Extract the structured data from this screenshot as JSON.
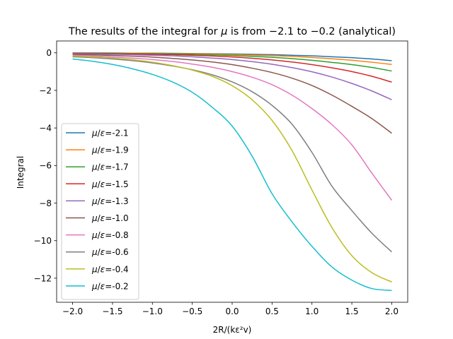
{
  "chart_data": {
    "type": "line",
    "title": "The results of the integral for μ is from −2.1 to −0.2 (analytical)",
    "xlabel": "2R/(kε²v)",
    "ylabel": "Integral",
    "xlim": [
      -2.2,
      2.2
    ],
    "ylim": [
      -13.28,
      0.63
    ],
    "xticks": [
      -2.0,
      -1.5,
      -1.0,
      -0.5,
      0.0,
      0.5,
      1.0,
      1.5,
      2.0
    ],
    "xtick_labels": [
      "−2.0",
      "−1.5",
      "−1.0",
      "−0.5",
      "0.0",
      "0.5",
      "1.0",
      "1.5",
      "2.0"
    ],
    "yticks": [
      0,
      -2,
      -4,
      -6,
      -8,
      -10,
      -12
    ],
    "ytick_labels": [
      "0",
      "−2",
      "−4",
      "−6",
      "−8",
      "−10",
      "−12"
    ],
    "grid": false,
    "legend_position": "lower-left",
    "x": [
      -2.0,
      -1.75,
      -1.5,
      -1.25,
      -1.0,
      -0.75,
      -0.5,
      -0.25,
      0.0,
      0.25,
      0.5,
      0.75,
      1.0,
      1.25,
      1.5,
      1.75,
      2.0
    ],
    "series": [
      {
        "name": "μ/ε=-2.1",
        "color": "#1f77b4",
        "values": [
          -0.01,
          -0.01,
          -0.01,
          -0.02,
          -0.02,
          -0.03,
          -0.04,
          -0.05,
          -0.06,
          -0.08,
          -0.1,
          -0.13,
          -0.16,
          -0.21,
          -0.26,
          -0.33,
          -0.42
        ]
      },
      {
        "name": "μ/ε=-1.9",
        "color": "#ff7f0e",
        "values": [
          -0.01,
          -0.01,
          -0.02,
          -0.02,
          -0.03,
          -0.04,
          -0.05,
          -0.07,
          -0.09,
          -0.12,
          -0.15,
          -0.19,
          -0.25,
          -0.32,
          -0.4,
          -0.5,
          -0.62
        ]
      },
      {
        "name": "μ/ε=-1.7",
        "color": "#2ca02c",
        "values": [
          -0.02,
          -0.02,
          -0.03,
          -0.04,
          -0.05,
          -0.06,
          -0.08,
          -0.11,
          -0.14,
          -0.19,
          -0.24,
          -0.31,
          -0.4,
          -0.51,
          -0.63,
          -0.78,
          -0.97
        ]
      },
      {
        "name": "μ/ε=-1.5",
        "color": "#d62728",
        "values": [
          -0.03,
          -0.04,
          -0.05,
          -0.06,
          -0.08,
          -0.1,
          -0.13,
          -0.17,
          -0.22,
          -0.29,
          -0.38,
          -0.49,
          -0.63,
          -0.8,
          -1.0,
          -1.25,
          -1.56
        ]
      },
      {
        "name": "μ/ε=-1.3",
        "color": "#9467bd",
        "values": [
          -0.05,
          -0.06,
          -0.08,
          -0.1,
          -0.13,
          -0.16,
          -0.21,
          -0.28,
          -0.36,
          -0.47,
          -0.61,
          -0.79,
          -1.01,
          -1.29,
          -1.63,
          -2.03,
          -2.5
        ]
      },
      {
        "name": "μ/ε=-1.0",
        "color": "#8c564b",
        "values": [
          -0.09,
          -0.11,
          -0.14,
          -0.18,
          -0.23,
          -0.3,
          -0.38,
          -0.49,
          -0.63,
          -0.82,
          -1.05,
          -1.35,
          -1.74,
          -2.25,
          -2.85,
          -3.5,
          -4.28
        ]
      },
      {
        "name": "μ/ε=-0.8",
        "color": "#e377c2",
        "values": [
          -0.13,
          -0.17,
          -0.22,
          -0.28,
          -0.36,
          -0.46,
          -0.6,
          -0.77,
          -1.0,
          -1.3,
          -1.7,
          -2.25,
          -2.97,
          -3.82,
          -4.9,
          -6.4,
          -7.85
        ]
      },
      {
        "name": "μ/ε=-0.6",
        "color": "#7f7f7f",
        "values": [
          -0.21,
          -0.26,
          -0.33,
          -0.42,
          -0.54,
          -0.7,
          -0.9,
          -1.17,
          -1.55,
          -2.07,
          -2.8,
          -3.8,
          -5.3,
          -7.1,
          -8.4,
          -9.6,
          -10.6
        ]
      },
      {
        "name": "μ/ε=-0.4",
        "color": "#bcbd22",
        "values": [
          -0.17,
          -0.22,
          -0.28,
          -0.37,
          -0.5,
          -0.68,
          -0.92,
          -1.25,
          -1.75,
          -2.5,
          -3.6,
          -5.2,
          -7.3,
          -9.3,
          -10.8,
          -11.7,
          -12.2
        ]
      },
      {
        "name": "μ/ε=-0.2",
        "color": "#17becf",
        "values": [
          -0.33,
          -0.45,
          -0.62,
          -0.85,
          -1.15,
          -1.55,
          -2.1,
          -2.9,
          -3.9,
          -5.5,
          -7.5,
          -9.0,
          -10.3,
          -11.4,
          -12.1,
          -12.55,
          -12.65
        ]
      }
    ]
  }
}
